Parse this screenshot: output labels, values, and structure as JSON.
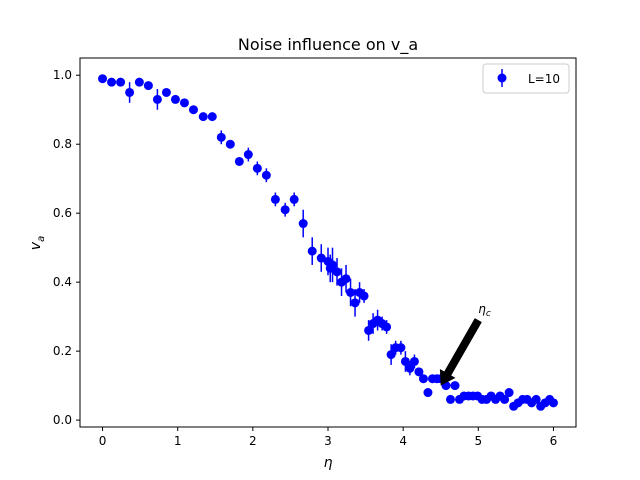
{
  "chart_data": {
    "type": "scatter",
    "title": "Noise influence on v_a",
    "xlabel": "η",
    "ylabel_main": "v",
    "ylabel_sub": "a",
    "xlim": [
      -0.3,
      6.3
    ],
    "ylim": [
      -0.02,
      1.05
    ],
    "xticks": [
      0,
      1,
      2,
      3,
      4,
      5,
      6
    ],
    "yticks": [
      0.0,
      0.2,
      0.4,
      0.6,
      0.8,
      1.0
    ],
    "xtick_labels": [
      "0",
      "1",
      "2",
      "3",
      "4",
      "5",
      "6"
    ],
    "ytick_labels": [
      "0.0",
      "0.2",
      "0.4",
      "0.6",
      "0.8",
      "1.0"
    ],
    "grid": false,
    "legend": {
      "position": "top-right",
      "label": "L=10"
    },
    "series": [
      {
        "name": "L=10",
        "color": "#0000ff",
        "x": [
          0.0,
          0.12,
          0.24,
          0.36,
          0.49,
          0.61,
          0.73,
          0.85,
          0.97,
          1.09,
          1.21,
          1.34,
          1.46,
          1.58,
          1.7,
          1.82,
          1.94,
          2.06,
          2.18,
          2.3,
          2.43,
          2.55,
          2.67,
          2.79,
          2.91,
          3.0,
          3.03,
          3.06,
          3.12,
          3.18,
          3.24,
          3.3,
          3.36,
          3.42,
          3.48,
          3.54,
          3.6,
          3.66,
          3.72,
          3.78,
          3.84,
          3.9,
          3.97,
          4.03,
          4.09,
          4.15,
          4.21,
          4.27,
          4.33,
          4.39,
          4.45,
          4.5,
          4.57,
          4.63,
          4.69,
          4.75,
          4.81,
          4.87,
          4.93,
          4.99,
          5.05,
          5.11,
          5.17,
          5.23,
          5.29,
          5.35,
          5.41,
          5.47,
          5.53,
          5.59,
          5.65,
          5.71,
          5.77,
          5.83,
          5.89,
          5.95,
          6.0
        ],
        "y": [
          0.99,
          0.98,
          0.98,
          0.95,
          0.98,
          0.97,
          0.93,
          0.95,
          0.93,
          0.92,
          0.9,
          0.88,
          0.88,
          0.82,
          0.8,
          0.75,
          0.77,
          0.73,
          0.71,
          0.64,
          0.61,
          0.64,
          0.57,
          0.49,
          0.47,
          0.46,
          0.44,
          0.45,
          0.43,
          0.4,
          0.41,
          0.37,
          0.34,
          0.37,
          0.36,
          0.26,
          0.28,
          0.29,
          0.28,
          0.27,
          0.19,
          0.21,
          0.21,
          0.17,
          0.15,
          0.17,
          0.14,
          0.12,
          0.08,
          0.12,
          0.12,
          0.12,
          0.1,
          0.06,
          0.1,
          0.06,
          0.07,
          0.07,
          0.07,
          0.07,
          0.06,
          0.06,
          0.07,
          0.06,
          0.07,
          0.06,
          0.08,
          0.04,
          0.05,
          0.06,
          0.06,
          0.05,
          0.06,
          0.04,
          0.05,
          0.06,
          0.05
        ],
        "err": [
          0.01,
          0.01,
          0.01,
          0.03,
          0.01,
          0.01,
          0.03,
          0.01,
          0.01,
          0.01,
          0.01,
          0.01,
          0.01,
          0.02,
          0.01,
          0.01,
          0.02,
          0.02,
          0.02,
          0.02,
          0.02,
          0.02,
          0.04,
          0.04,
          0.04,
          0.04,
          0.04,
          0.05,
          0.04,
          0.04,
          0.04,
          0.04,
          0.04,
          0.03,
          0.02,
          0.03,
          0.03,
          0.03,
          0.02,
          0.02,
          0.03,
          0.02,
          0.02,
          0.03,
          0.02,
          0.02,
          0.01,
          0.01,
          0.01,
          0.01,
          0.01,
          0.01,
          0.01,
          0.01,
          0.01,
          0.01,
          0.01,
          0.01,
          0.01,
          0.01,
          0.01,
          0.01,
          0.01,
          0.01,
          0.01,
          0.01,
          0.01,
          0.01,
          0.01,
          0.01,
          0.01,
          0.01,
          0.01,
          0.01,
          0.01,
          0.01,
          0.01
        ]
      }
    ],
    "annotation": {
      "label_main": "η",
      "label_sub": "c",
      "text_x": 5.0,
      "text_y": 0.29,
      "arrow_to_x": 4.5,
      "arrow_to_y": 0.1
    }
  }
}
